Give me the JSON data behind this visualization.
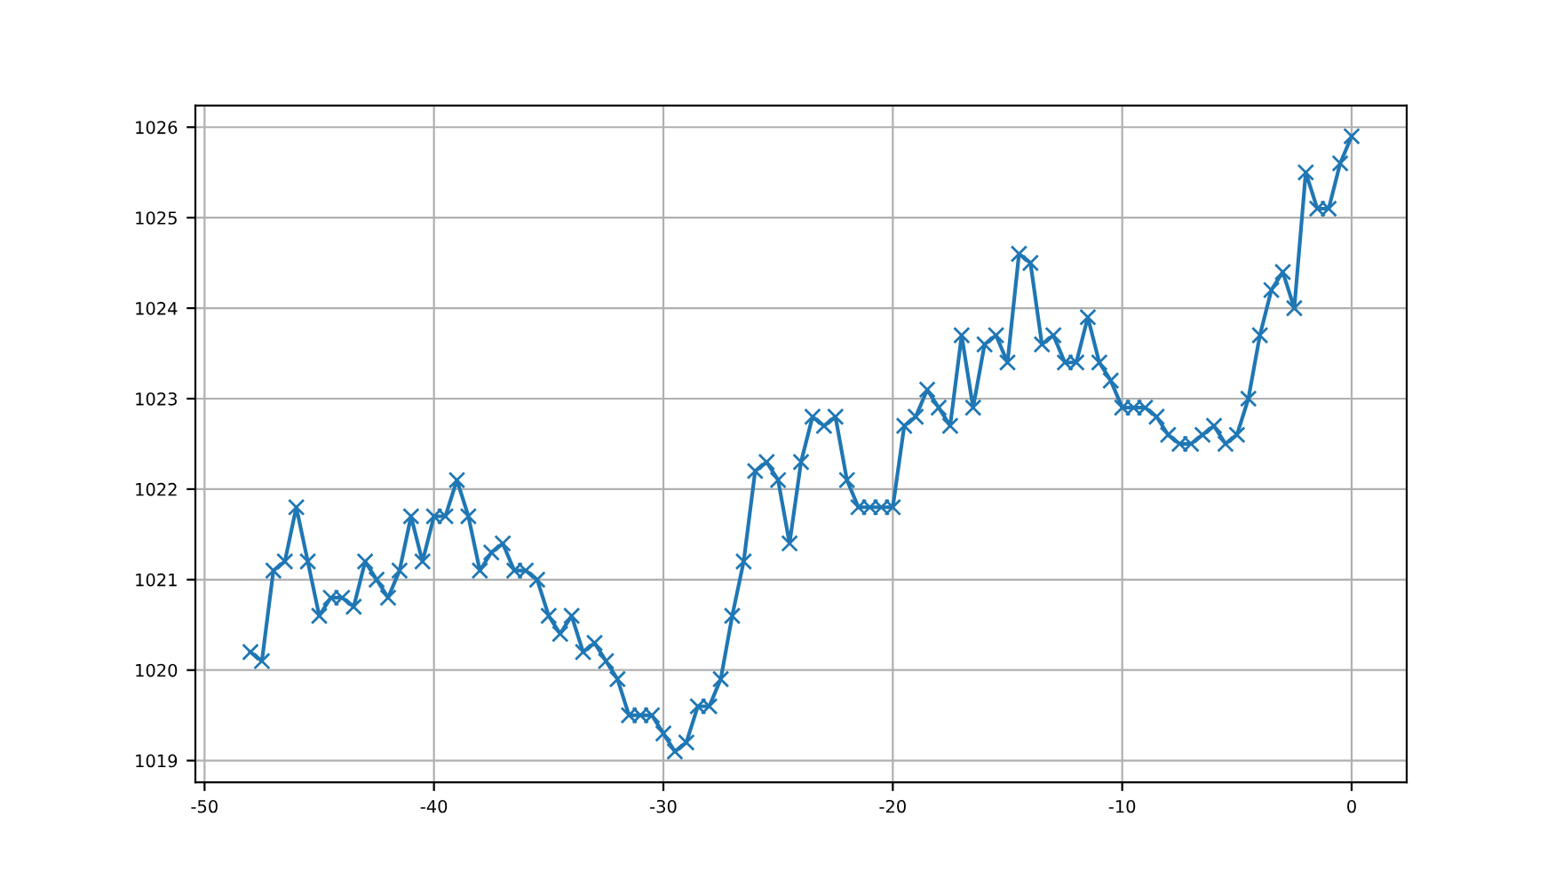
{
  "chart_data": {
    "type": "line",
    "x": [
      -48,
      -47.5,
      -47,
      -46.5,
      -46,
      -45.5,
      -45,
      -44.5,
      -44,
      -43.5,
      -43,
      -42.5,
      -42,
      -41.5,
      -41,
      -40.5,
      -40,
      -39.5,
      -39,
      -38.5,
      -38,
      -37.5,
      -37,
      -36.5,
      -36,
      -35.5,
      -35,
      -34.5,
      -34,
      -33.5,
      -33,
      -32.5,
      -32,
      -31.5,
      -31,
      -30.5,
      -30,
      -29.5,
      -29,
      -28.5,
      -28,
      -27.5,
      -27,
      -26.5,
      -26,
      -25.5,
      -25,
      -24.5,
      -24,
      -23.5,
      -23,
      -22.5,
      -22,
      -21.5,
      -21,
      -20.5,
      -20,
      -19.5,
      -19,
      -18.5,
      -18,
      -17.5,
      -17,
      -16.5,
      -16,
      -15.5,
      -15,
      -14.5,
      -14,
      -13.5,
      -13,
      -12.5,
      -12,
      -11.5,
      -11,
      -10.5,
      -10,
      -9.5,
      -9,
      -8.5,
      -8,
      -7.5,
      -7,
      -6.5,
      -6,
      -5.5,
      -5,
      -4.5,
      -4,
      -3.5,
      -3,
      -2.5,
      -2,
      -1.5,
      -1,
      -0.5,
      0
    ],
    "series": [
      {
        "color": "#1f77b4",
        "values": [
          1020.2,
          1020.1,
          1021.1,
          1021.2,
          1021.8,
          1021.2,
          1020.6,
          1020.8,
          1020.8,
          1020.7,
          1021.2,
          1021.0,
          1020.8,
          1021.1,
          1021.7,
          1021.2,
          1021.7,
          1021.7,
          1022.1,
          1021.7,
          1021.1,
          1021.3,
          1021.4,
          1021.1,
          1021.1,
          1021.0,
          1020.6,
          1020.4,
          1020.6,
          1020.2,
          1020.3,
          1020.1,
          1019.9,
          1019.5,
          1019.5,
          1019.5,
          1019.3,
          1019.1,
          1019.2,
          1019.6,
          1019.6,
          1019.9,
          1020.6,
          1021.2,
          1022.2,
          1022.3,
          1022.1,
          1021.4,
          1022.3,
          1022.8,
          1022.7,
          1022.8,
          1022.1,
          1021.8,
          1021.8,
          1021.8,
          1021.8,
          1022.7,
          1022.8,
          1023.1,
          1022.9,
          1022.7,
          1023.7,
          1022.9,
          1023.6,
          1023.7,
          1023.4,
          1024.6,
          1024.5,
          1023.6,
          1023.7,
          1023.4,
          1023.4,
          1023.9,
          1023.4,
          1023.2,
          1022.9,
          1022.9,
          1022.9,
          1022.8,
          1022.6,
          1022.5,
          1022.5,
          1022.6,
          1022.7,
          1022.5,
          1022.6,
          1023.0,
          1023.7,
          1024.2,
          1024.4,
          1024.0,
          1025.5,
          1025.1,
          1025.1,
          1025.6,
          1025.9
        ]
      }
    ],
    "xlim": [
      -50.4,
      2.4
    ],
    "ylim": [
      1018.76,
      1026.24
    ],
    "xticks": [
      -50,
      -40,
      -30,
      -20,
      -10,
      0
    ],
    "yticks": [
      1019,
      1020,
      1021,
      1022,
      1023,
      1024,
      1025,
      1026
    ],
    "grid": true,
    "marker": "cross",
    "line_style": "solid"
  }
}
